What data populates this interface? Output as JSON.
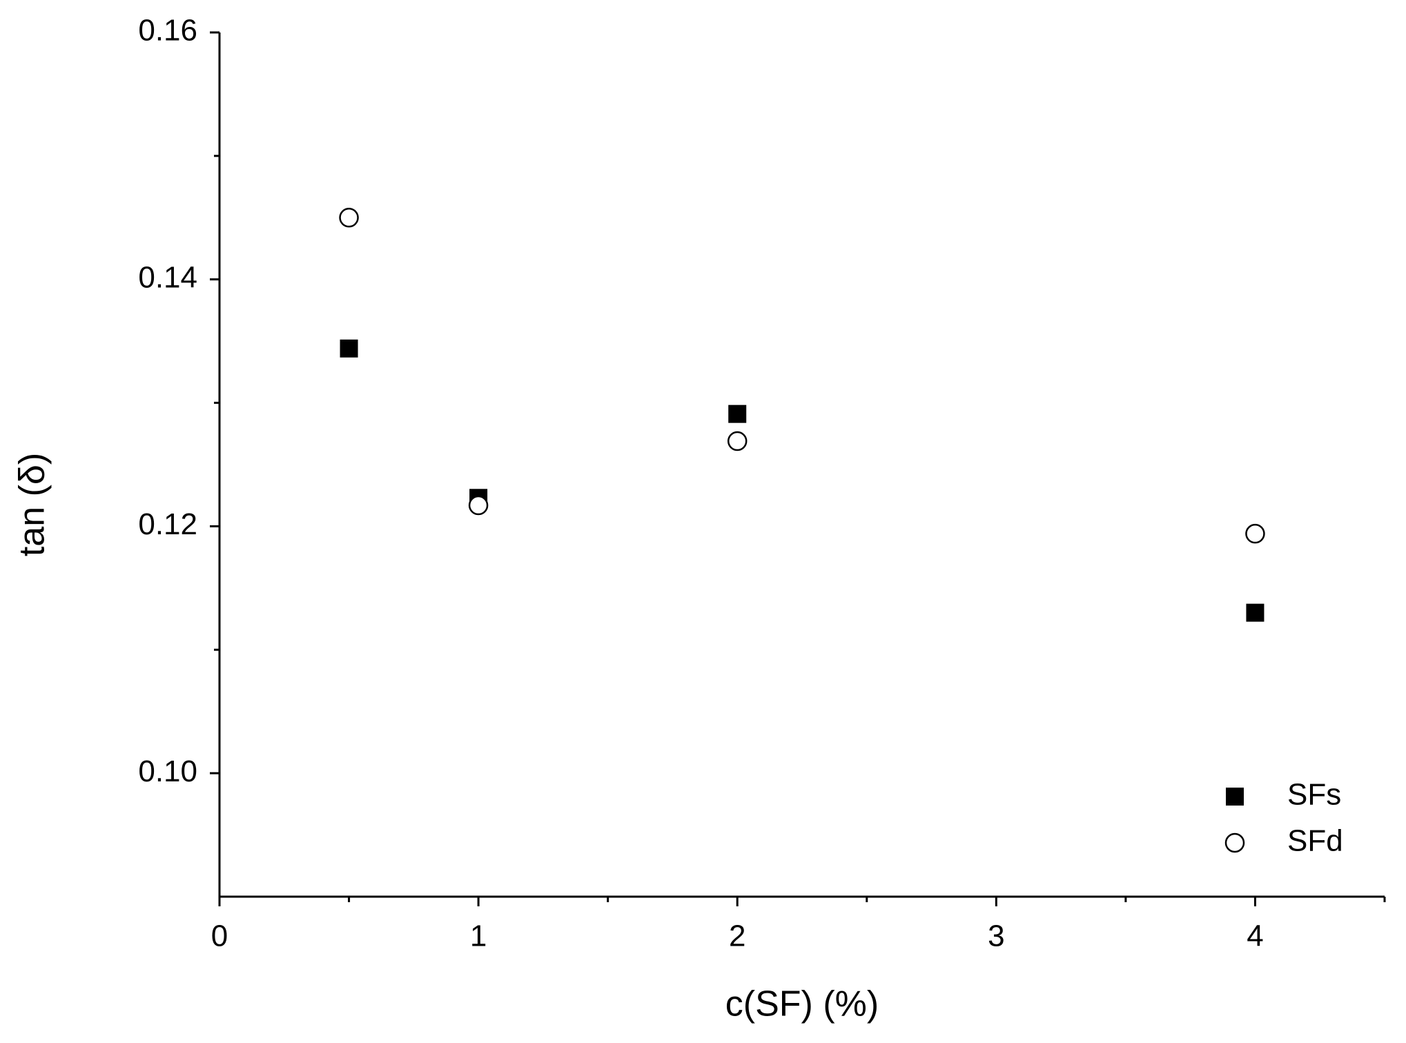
{
  "chart_data": {
    "type": "scatter",
    "x_label": "c(SF) (%)",
    "y_label": "tan (δ)",
    "xlim": [
      0,
      4.5
    ],
    "ylim": [
      0.09,
      0.16
    ],
    "xticks": [
      0,
      1,
      2,
      3,
      4
    ],
    "xminorticks": [
      0.5,
      1.5,
      2.5,
      3.5,
      4.5
    ],
    "yticks": [
      {
        "value": 0.1,
        "label": "0.10"
      },
      0.12,
      0.14,
      0.16
    ],
    "yminorticks": [
      0.11,
      0.13,
      0.15
    ],
    "legend_position": "lower right",
    "series": [
      {
        "name": "SFs",
        "marker": "square",
        "color": "#000000",
        "x": [
          0.5,
          1,
          2,
          4
        ],
        "values": [
          0.1344,
          0.1223,
          0.1291,
          0.113
        ]
      },
      {
        "name": "SFd",
        "marker": "open-circle",
        "color": "#000000",
        "x": [
          0.5,
          1,
          2,
          4
        ],
        "values": [
          0.145,
          0.1217,
          0.1269,
          0.1194
        ]
      }
    ]
  }
}
